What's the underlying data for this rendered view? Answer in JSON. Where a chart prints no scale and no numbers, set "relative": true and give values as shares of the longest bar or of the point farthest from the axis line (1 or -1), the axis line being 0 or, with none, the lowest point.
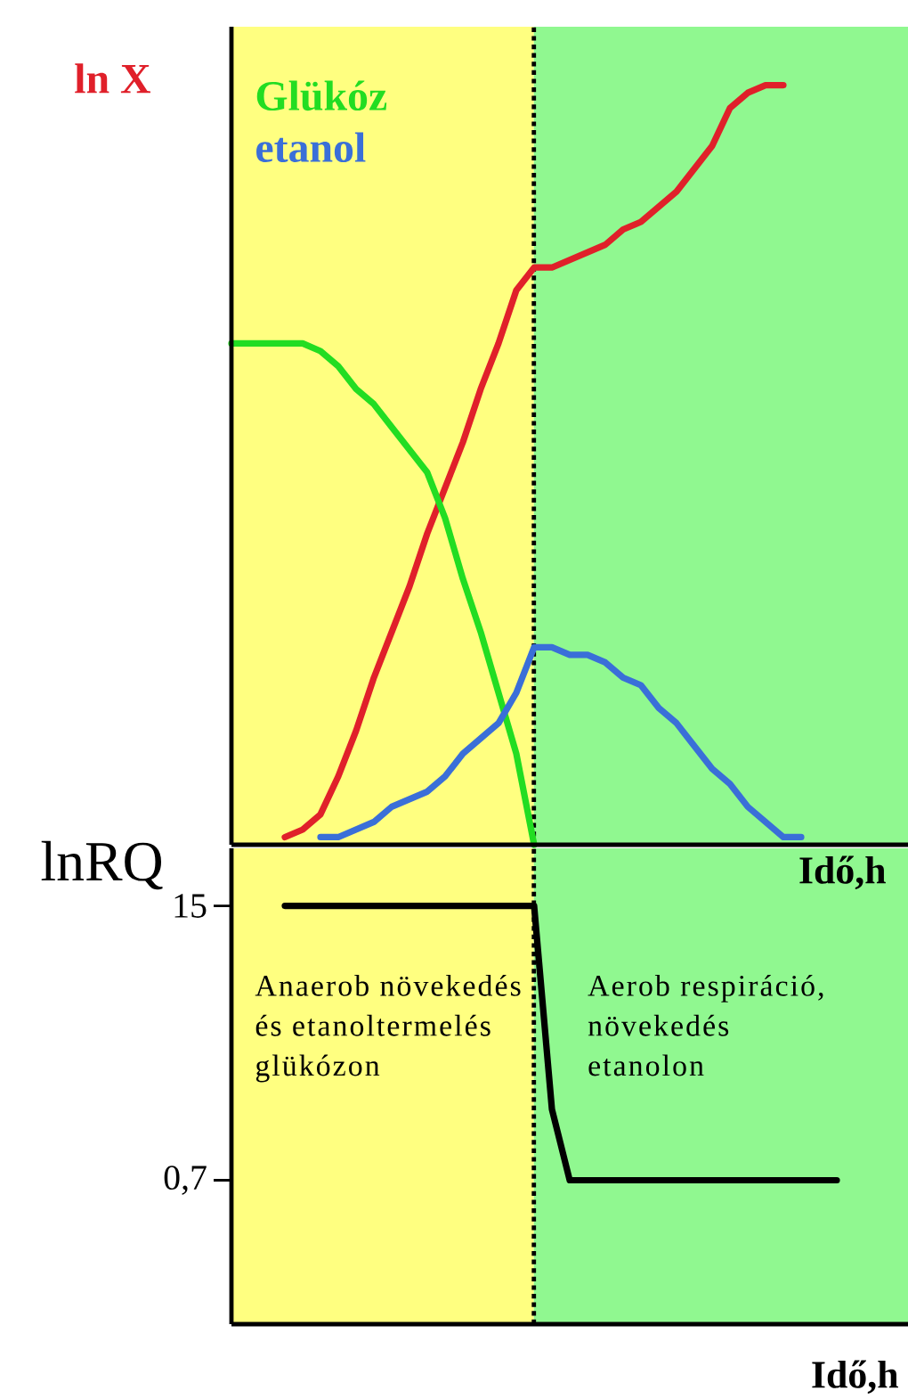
{
  "chart_data": [
    {
      "type": "line",
      "relative": true,
      "categories": [
        null,
        null,
        null,
        null,
        null,
        null,
        null,
        null,
        null,
        null,
        null,
        null,
        null,
        null,
        null,
        null,
        null,
        null,
        null,
        null,
        null,
        null,
        null,
        null,
        null,
        null,
        null,
        null,
        null,
        null,
        null,
        null,
        null,
        null,
        null,
        null,
        null,
        null,
        null
      ],
      "series": [
        {
          "name": "ln X",
          "color": "#e0202a",
          "values": [
            null,
            null,
            null,
            0.01,
            0.02,
            0.04,
            0.09,
            0.15,
            0.22,
            0.28,
            0.34,
            0.41,
            0.47,
            0.53,
            0.6,
            0.66,
            0.73,
            0.76,
            0.76,
            0.77,
            0.78,
            0.79,
            0.81,
            0.82,
            0.84,
            0.86,
            0.89,
            0.92,
            0.97,
            0.99,
            1,
            1,
            null,
            null,
            null,
            null,
            null,
            null,
            null
          ]
        },
        {
          "name": "Glükóz",
          "color": "#22dd22",
          "values": [
            0.66,
            0.66,
            0.66,
            0.66,
            0.66,
            0.65,
            0.63,
            0.6,
            0.58,
            0.55,
            0.52,
            0.49,
            0.43,
            0.35,
            0.28,
            0.2,
            0.12,
            0,
            null,
            null,
            null,
            null,
            null,
            null,
            null,
            null,
            null,
            null,
            null,
            null,
            null,
            null,
            null,
            null,
            null,
            null,
            null,
            null,
            null
          ]
        },
        {
          "name": "etanol",
          "color": "#3a6fd8",
          "values": [
            null,
            null,
            null,
            null,
            null,
            0.01,
            0.01,
            0.02,
            0.03,
            0.05,
            0.06,
            0.07,
            0.09,
            0.12,
            0.14,
            0.16,
            0.2,
            0.26,
            0.26,
            0.25,
            0.25,
            0.24,
            0.22,
            0.21,
            0.18,
            0.16,
            0.13,
            0.1,
            0.08,
            0.05,
            0.03,
            0.01,
            0.01,
            null,
            null,
            null,
            null,
            null,
            null
          ]
        }
      ],
      "xlabel": "Idő,h",
      "legend": "top left"
    },
    {
      "type": "line",
      "categories": [
        null,
        null,
        null,
        null,
        null,
        null,
        null,
        null,
        null,
        null,
        null,
        null,
        null,
        null,
        null,
        null,
        null,
        null,
        null,
        null,
        null,
        null,
        null,
        null,
        null,
        null,
        null,
        null,
        null,
        null,
        null,
        null,
        null,
        null,
        null,
        null,
        null,
        null,
        null
      ],
      "series": [
        {
          "color": "#000000",
          "values": [
            null,
            null,
            null,
            15,
            15,
            15,
            15,
            15,
            15,
            15,
            15,
            15,
            15,
            15,
            15,
            15,
            15,
            15,
            4.4,
            0.7,
            0.7,
            0.7,
            0.7,
            0.7,
            0.7,
            0.7,
            0.7,
            0.7,
            0.7,
            0.7,
            0.7,
            0.7,
            0.7,
            0.7,
            0.7,
            null,
            null,
            null,
            null
          ]
        }
      ],
      "xlabel": "Idő,h",
      "ylabel": "lnRQ",
      "ylim": [
        -6.8,
        18
      ],
      "yticks": [
        {
          "value": 15,
          "label": "15"
        },
        {
          "value": 0.7,
          "label": "0,7"
        }
      ],
      "annotations": [
        "Anaerob növekedés és etanoltermelés glükózon",
        "Aerob respiráció, növekedés etanolon"
      ]
    }
  ]
}
